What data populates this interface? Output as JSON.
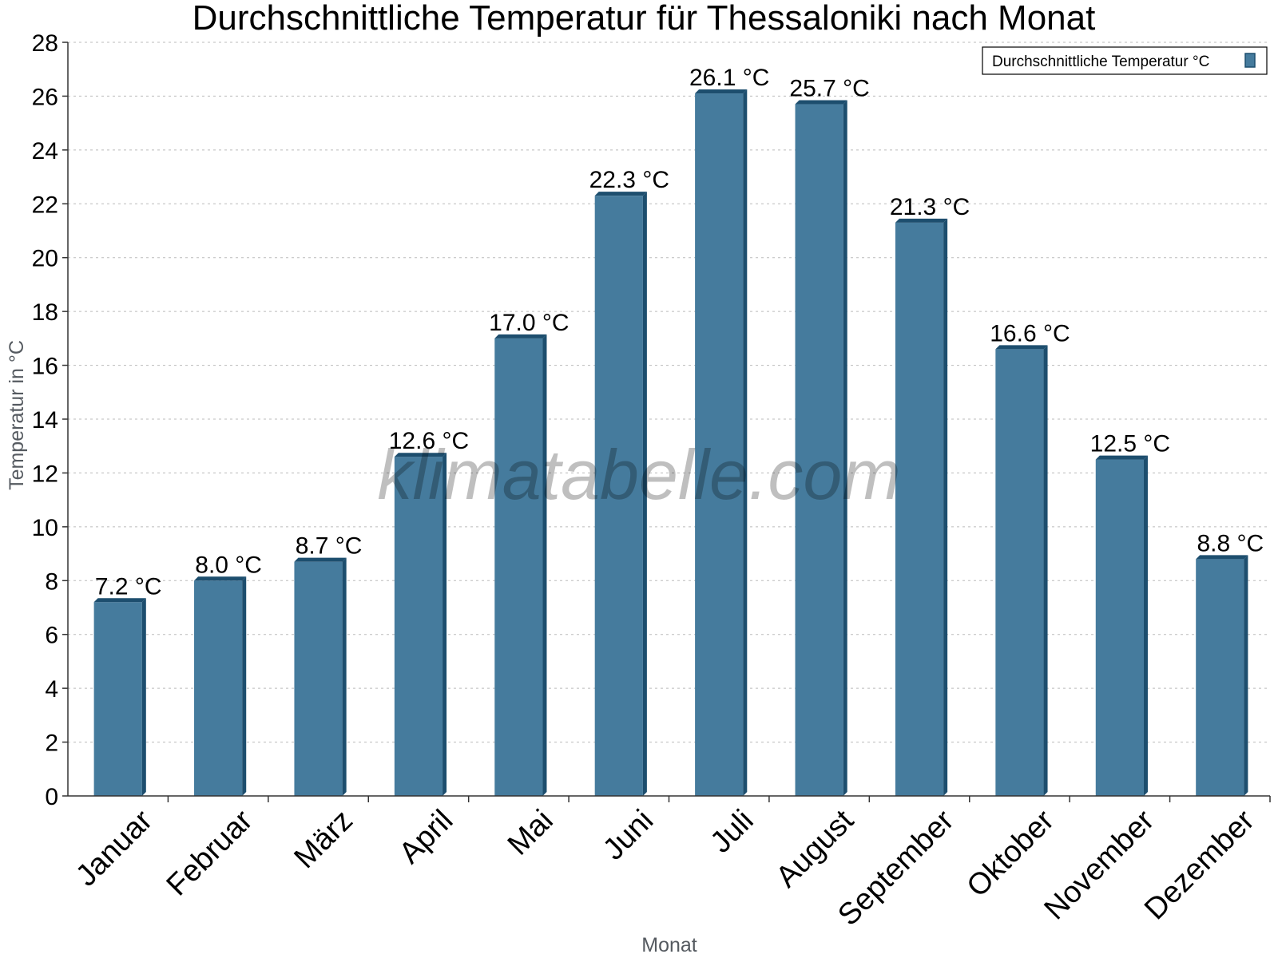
{
  "chart_data": {
    "type": "bar",
    "title": "Durchschnittliche Temperatur für Thessaloniki nach Monat",
    "xlabel": "Monat",
    "ylabel": "Temperatur in °C",
    "ylim": [
      0,
      28
    ],
    "ytick_step": 2,
    "yticks": [
      "0",
      "2",
      "4",
      "6",
      "8",
      "10",
      "12",
      "14",
      "16",
      "18",
      "20",
      "22",
      "24",
      "26",
      "28"
    ],
    "grid": true,
    "legend_position": "top-right",
    "categories": [
      "Januar",
      "Februar",
      "März",
      "April",
      "Mai",
      "Juni",
      "Juli",
      "August",
      "September",
      "Oktober",
      "November",
      "Dezember"
    ],
    "series": [
      {
        "name": "Durchschnittliche Temperatur °C",
        "values": [
          7.2,
          8.0,
          8.7,
          12.6,
          17.0,
          22.3,
          26.1,
          25.7,
          21.3,
          16.6,
          12.5,
          8.8
        ],
        "labels": [
          "7.2 °C",
          "8.0 °C",
          "8.7 °C",
          "12.6 °C",
          "17.0 °C",
          "22.3 °C",
          "26.1 °C",
          "25.7 °C",
          "21.3 °C",
          "16.6 °C",
          "12.5 °C",
          "8.8 °C"
        ]
      }
    ],
    "colors": {
      "bar": "#457b9d",
      "bar_side": "#1d4e6e",
      "bar_top": "#1d4e6e",
      "grid": "#bbbbbb",
      "axis": "#333333"
    },
    "watermark": "klimatabelle.com"
  }
}
